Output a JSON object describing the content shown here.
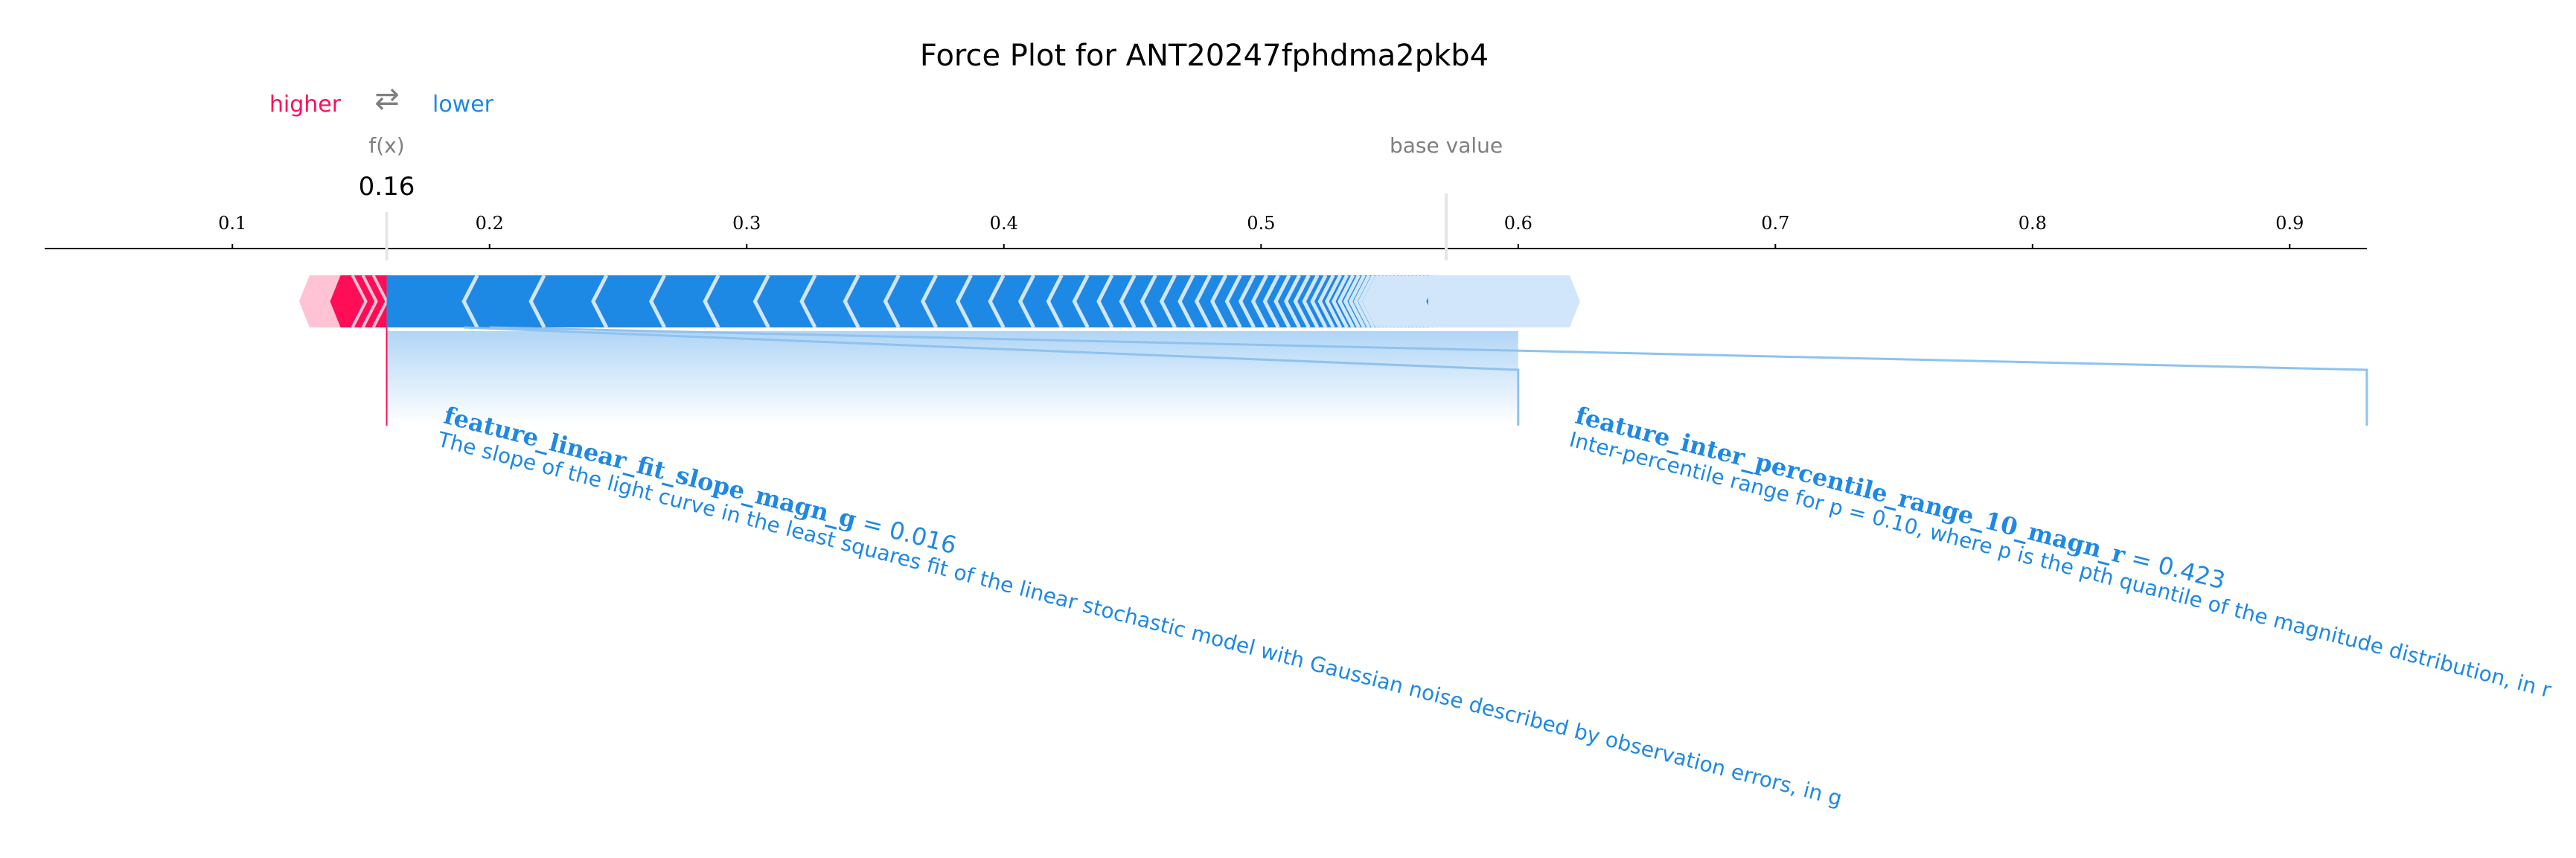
{
  "chart_data": {
    "type": "force",
    "title": "Force Plot for ANT20247fphdma2pkb4",
    "legend": {
      "higher": "higher",
      "arrow_symbol": "⇄",
      "lower": "lower"
    },
    "fx_label": "f(x)",
    "fx_value_text": "0.16",
    "fx_value": 0.16,
    "base_value_label": "base value",
    "base_value": 0.572,
    "x_range": [
      0.027,
      0.93
    ],
    "x_ticks": [
      0.1,
      0.2,
      0.3,
      0.4,
      0.5,
      0.6,
      0.7,
      0.8,
      0.9
    ],
    "x_tick_labels": [
      "0.1",
      "0.2",
      "0.3",
      "0.4",
      "0.5",
      "0.6",
      "0.7",
      "0.8",
      "0.9"
    ],
    "positive_range": [
      0.13,
      0.16
    ],
    "negative_range": [
      0.16,
      0.62
    ],
    "labeled_features": [
      {
        "name": "feature_linear_fit_slope_magn_g",
        "value_text": " = 0.016",
        "description": "The slope of the light curve in the least squares fit of the linear stochastic model with Gaussian noise described by observation errors, in g",
        "segment": [
          0.16,
          0.19
        ],
        "label_anchor": 0.16
      },
      {
        "name": "feature_inter_percentile_range_10_magn_r",
        "value_text": " = 0.423",
        "description": "Inter-percentile range for p = 0.10, where p is the pth quantile of the magnitude distribution, in r",
        "segment": [
          0.19,
          0.6
        ],
        "label_anchor": 0.6
      }
    ],
    "colors": {
      "positive": "#ff0d57",
      "positive_light": "#ffc3d5",
      "negative": "#1e88e5",
      "negative_light": "#d1e6fa",
      "axis": "#000000",
      "muted": "#7f7f7f"
    }
  }
}
